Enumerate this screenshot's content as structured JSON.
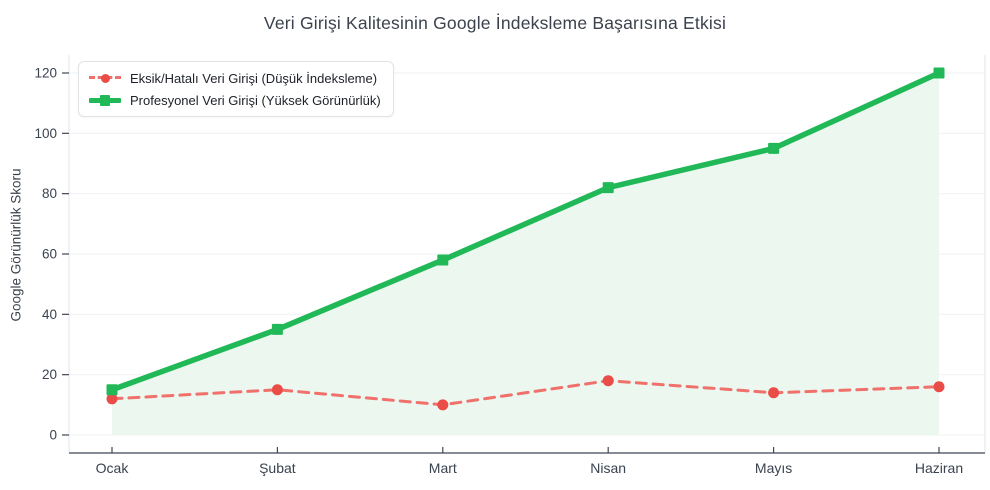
{
  "chart_data": {
    "type": "line",
    "title": "Veri Girişi Kalitesinin Google İndeksleme Başarısına Etkisi",
    "xlabel": "",
    "ylabel": "Google Görünürlük Skoru",
    "categories": [
      "Ocak",
      "Şubat",
      "Mart",
      "Nisan",
      "Mayıs",
      "Haziran"
    ],
    "series": [
      {
        "name": "Eksik/Hatalı Veri Girişi (Düşük İndeksleme)",
        "values": [
          12,
          15,
          10,
          18,
          14,
          16
        ],
        "style": "dashed",
        "marker": "circle",
        "line_color": "#f0716c",
        "marker_color": "#ea4c47",
        "area": false
      },
      {
        "name": "Profesyonel Veri Girişi (Yüksek Görünürlük)",
        "values": [
          15,
          35,
          58,
          82,
          95,
          120
        ],
        "style": "solid",
        "marker": "square",
        "line_color": "#21b858",
        "marker_color": "#21b858",
        "area": true,
        "area_color": "#e9f6ee"
      }
    ],
    "yticks": [
      0,
      20,
      40,
      60,
      80,
      100,
      120
    ],
    "ylim": [
      0,
      120
    ],
    "grid": true,
    "legend_position": "top-left",
    "colors": {
      "axis_line": "#3f4854",
      "tick_text": "#3a4350",
      "title_text": "#3b424d",
      "gridline": "#f2f3f4",
      "plot_border": "#e3e6e8"
    }
  }
}
